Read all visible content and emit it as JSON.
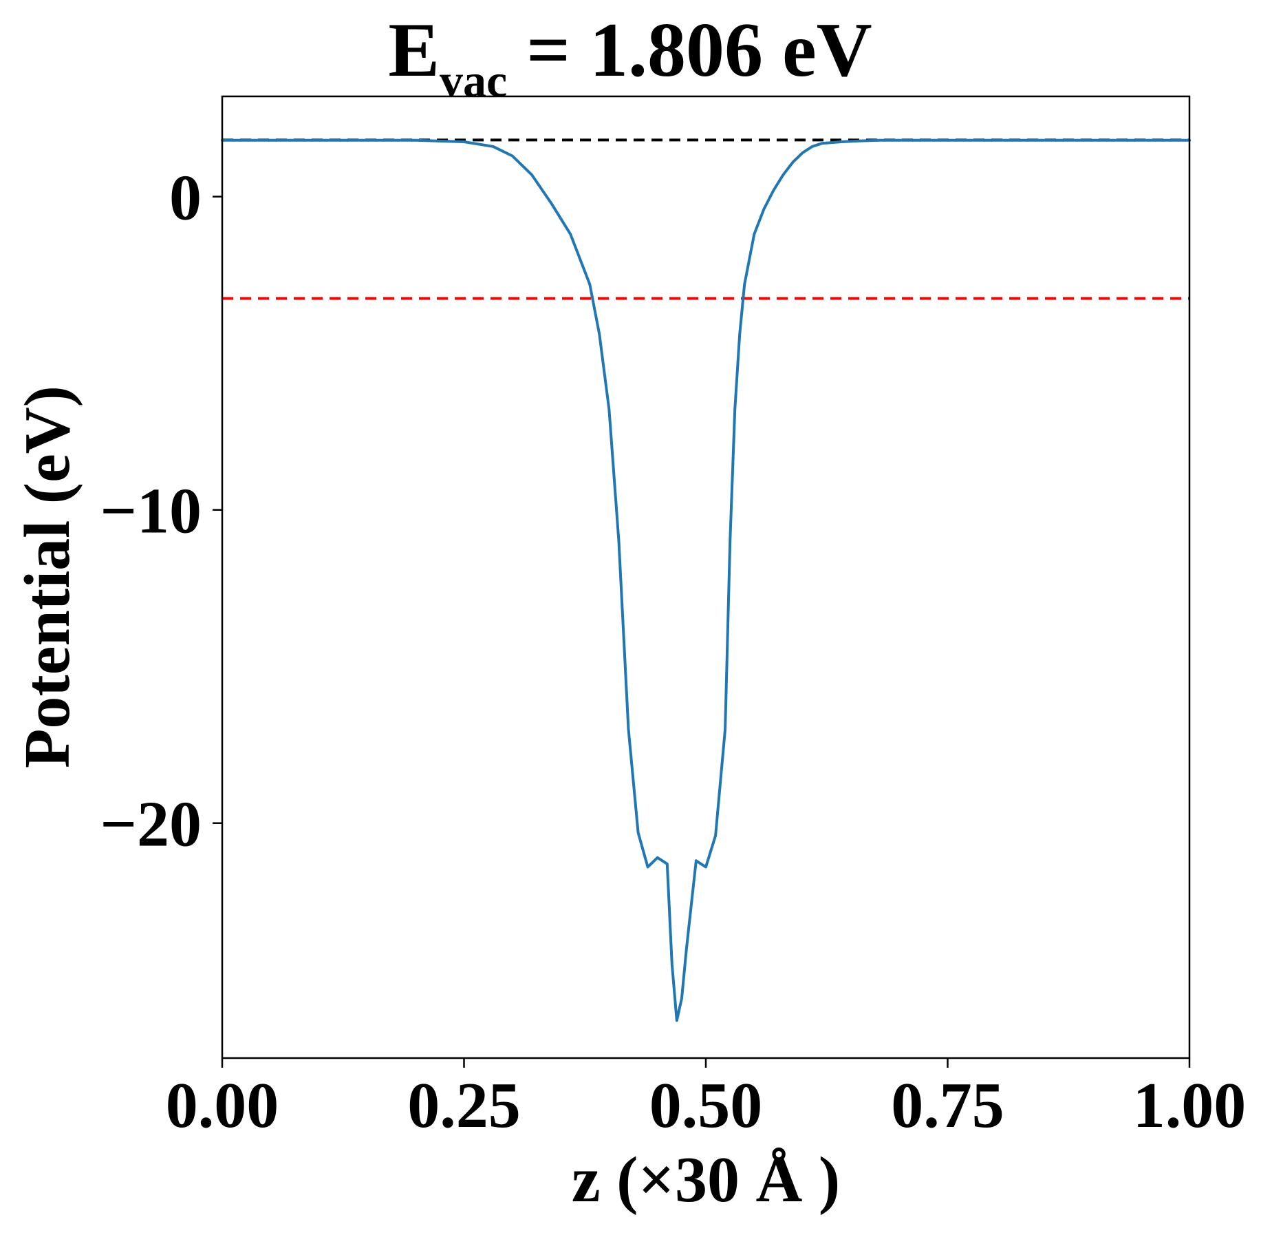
{
  "chart_data": {
    "type": "line",
    "title": {
      "main": "E",
      "subscript": "vac",
      "rest": " = 1.806 eV"
    },
    "xlabel": "z (×30 Å )",
    "ylabel": "Potential (eV)",
    "xlim": [
      0.0,
      1.0
    ],
    "ylim": [
      -27.5,
      3.2
    ],
    "xticks": [
      0.0,
      0.25,
      0.5,
      0.75,
      1.0
    ],
    "xtick_labels": [
      "0.00",
      "0.25",
      "0.50",
      "0.75",
      "1.00"
    ],
    "yticks": [
      0,
      -10,
      -20
    ],
    "ytick_labels": [
      "0",
      "−10",
      "−20"
    ],
    "grid": false,
    "legend": "none",
    "hlines": [
      {
        "y": 1.806,
        "color": "#000000",
        "style": "dashed"
      },
      {
        "y": -3.25,
        "color": "#ff0000",
        "style": "dashed"
      }
    ],
    "series": [
      {
        "color": "#1f77b4",
        "x": [
          0.0,
          0.05,
          0.1,
          0.15,
          0.2,
          0.25,
          0.28,
          0.3,
          0.32,
          0.34,
          0.36,
          0.38,
          0.39,
          0.4,
          0.41,
          0.42,
          0.43,
          0.44,
          0.45,
          0.46,
          0.465,
          0.47,
          0.475,
          0.48,
          0.49,
          0.5,
          0.51,
          0.52,
          0.525,
          0.53,
          0.535,
          0.54,
          0.55,
          0.56,
          0.57,
          0.58,
          0.59,
          0.6,
          0.61,
          0.62,
          0.64,
          0.66,
          0.68,
          0.7,
          0.72,
          0.75,
          0.8,
          0.85,
          0.9,
          0.95,
          1.0
        ],
        "y": [
          1.8,
          1.8,
          1.8,
          1.8,
          1.8,
          1.75,
          1.6,
          1.3,
          0.7,
          -0.2,
          -1.2,
          -2.8,
          -4.4,
          -6.8,
          -11.0,
          -17.0,
          -20.3,
          -21.4,
          -21.1,
          -21.3,
          -24.5,
          -26.3,
          -25.6,
          -24.0,
          -21.2,
          -21.4,
          -20.4,
          -17.0,
          -11.0,
          -6.8,
          -4.4,
          -2.8,
          -1.2,
          -0.4,
          0.2,
          0.7,
          1.1,
          1.4,
          1.6,
          1.7,
          1.75,
          1.78,
          1.8,
          1.8,
          1.8,
          1.8,
          1.8,
          1.8,
          1.8,
          1.8,
          1.8
        ]
      }
    ]
  }
}
